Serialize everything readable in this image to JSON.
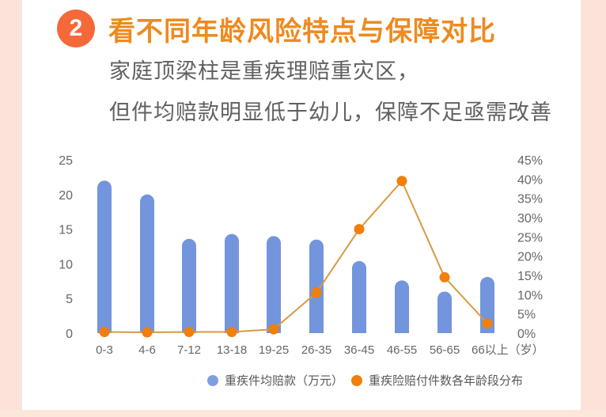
{
  "header": {
    "badge_number": "2",
    "title": "看不同年龄风险特点与保障对比",
    "subtitle_line1": "家庭顶梁柱是重疾理赔重灾区，",
    "subtitle_line2": "但件均赔款明显低于幼儿，保障不足亟需改善"
  },
  "colors": {
    "badge": "#f4683a",
    "title": "#ee8a1f",
    "bar": "#7295dd",
    "line": "#f07f0b",
    "line_stroke": "#d79a42"
  },
  "legend": {
    "bar_label": "重疾件均赔款（万元）",
    "line_label": "重疾险赔付件数各年龄段分布"
  },
  "chart_data": {
    "type": "bar",
    "title": "",
    "categories": [
      "0-3",
      "4-6",
      "7-12",
      "13-18",
      "19-25",
      "26-35",
      "36-45",
      "46-55",
      "56-65",
      "66以上（岁）"
    ],
    "series": [
      {
        "name": "重疾件均赔款（万元）",
        "type": "bar",
        "axis": "left",
        "values": [
          22,
          20,
          13.6,
          14.3,
          14,
          13.5,
          10.4,
          7.6,
          6,
          8.1
        ]
      },
      {
        "name": "重疾险赔付件数各年龄段分布",
        "type": "line",
        "axis": "right",
        "values": [
          0.3,
          0.2,
          0.3,
          0.3,
          1.0,
          10.5,
          27,
          39.5,
          14.5,
          2.5
        ],
        "unit": "%"
      }
    ],
    "left_axis": {
      "ticks": [
        "0",
        "5",
        "10",
        "15",
        "20",
        "25"
      ],
      "ylim": [
        0,
        25
      ]
    },
    "right_axis": {
      "ticks": [
        "0%",
        "5%",
        "10%",
        "15%",
        "20%",
        "25%",
        "30%",
        "35%",
        "40%",
        "45%"
      ],
      "ylim": [
        0,
        45
      ]
    },
    "xlabel": "",
    "ylabel": "",
    "grid": false,
    "legend_position": "bottom-right"
  }
}
